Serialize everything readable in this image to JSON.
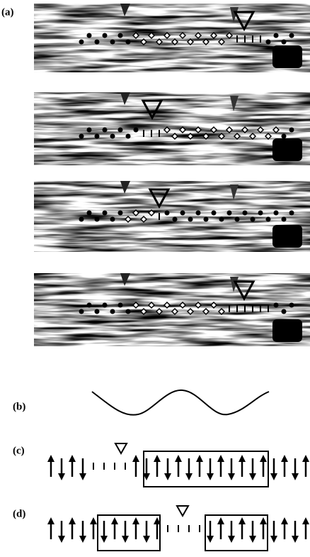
{
  "labels": {
    "a": "(a)",
    "b": "(b)",
    "c": "(c)",
    "d": "(d)"
  }
}
